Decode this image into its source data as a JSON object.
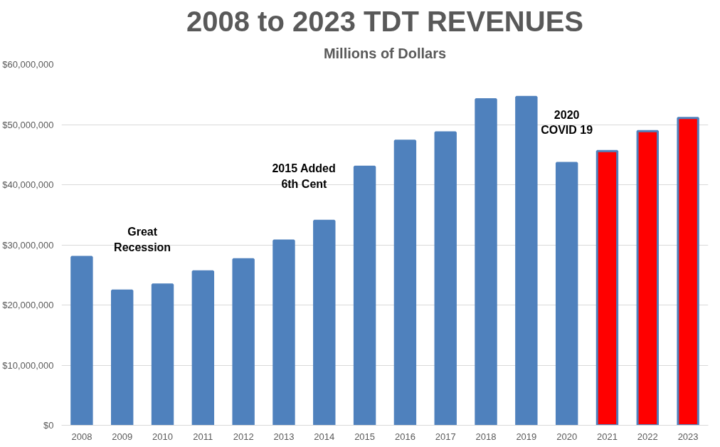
{
  "chart_data": {
    "type": "bar",
    "title": "2008 to 2023 TDT REVENUES",
    "subtitle": "Millions of Dollars",
    "categories": [
      "2008",
      "2009",
      "2010",
      "2011",
      "2012",
      "2013",
      "2014",
      "2015",
      "2016",
      "2017",
      "2018",
      "2019",
      "2020",
      "2021",
      "2022",
      "2023"
    ],
    "values": [
      28000000,
      22400000,
      23400000,
      25600000,
      27600000,
      30700000,
      34000000,
      43000000,
      47300000,
      48700000,
      54200000,
      54600000,
      43600000,
      45600000,
      48900000,
      51100000
    ],
    "colors": [
      "#4f81bd",
      "#4f81bd",
      "#4f81bd",
      "#4f81bd",
      "#4f81bd",
      "#4f81bd",
      "#4f81bd",
      "#4f81bd",
      "#4f81bd",
      "#4f81bd",
      "#4f81bd",
      "#4f81bd",
      "#4f81bd",
      "#ff0000",
      "#ff0000",
      "#ff0000"
    ],
    "ylim": [
      0,
      60000000
    ],
    "yticks": [
      {
        "value": 0,
        "label": "$0"
      },
      {
        "value": 10000000,
        "label": "$10,000,000"
      },
      {
        "value": 20000000,
        "label": "$20,000,000"
      },
      {
        "value": 30000000,
        "label": "$30,000,000"
      },
      {
        "value": 40000000,
        "label": "$40,000,000"
      },
      {
        "value": 50000000,
        "label": "$50,000,000"
      },
      {
        "value": 60000000,
        "label": "$60,000,000"
      }
    ],
    "grid": "y",
    "annotations": [
      "Great\nRecession",
      "2015 Added\n6th Cent",
      "2020\nCOVID 19"
    ]
  }
}
